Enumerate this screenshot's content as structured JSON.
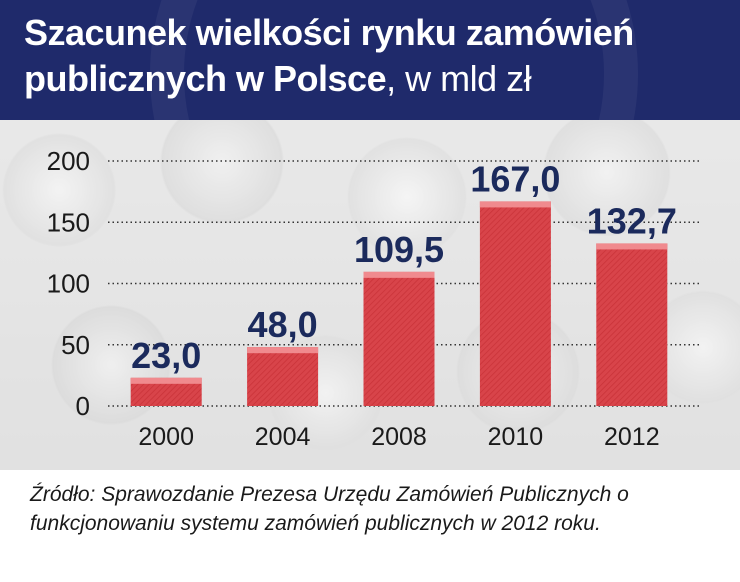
{
  "header": {
    "title_line1": "Szacunek wielkości rynku zamówień",
    "title_line2": "publicznych w Polsce",
    "title_unit": ", w mld zł"
  },
  "chart_data": {
    "type": "bar",
    "categories": [
      "2000",
      "2004",
      "2008",
      "2010",
      "2012"
    ],
    "values": [
      23.0,
      48.0,
      109.5,
      167.0,
      132.7
    ],
    "value_labels": [
      "23,0",
      "48,0",
      "109,5",
      "167,0",
      "132,7"
    ],
    "y_ticks": [
      0,
      50,
      100,
      150,
      200
    ],
    "ylim": [
      0,
      200
    ],
    "grid": true,
    "bar_color": "#d8444a",
    "bar_top_color": "#f08a8e",
    "label_color": "#1b2a5c"
  },
  "source": "Źródło: Sprawozdanie Prezesa Urzędu Zamówień Publicznych o funkcjonowaniu systemu zamówień publicznych w 2012 roku.",
  "colors": {
    "header_background": "#1f2a6b",
    "header_text": "#ffffff"
  }
}
